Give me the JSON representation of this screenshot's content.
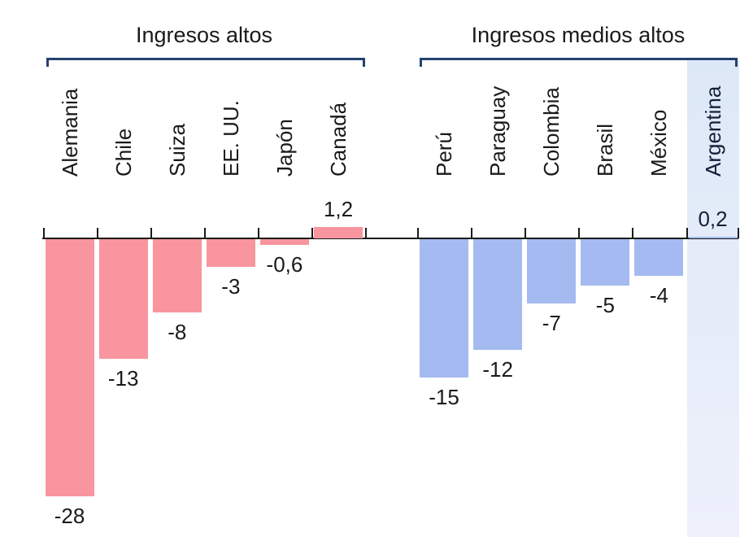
{
  "chart_data": {
    "type": "bar",
    "orientation": "vertical-columns",
    "title": "",
    "xlabel": "",
    "ylabel": "",
    "ylim": [
      -30,
      3
    ],
    "grid": false,
    "legend": "none",
    "value_format": "decimal-comma",
    "axis_color": "#1a1a1a",
    "bracket_color": "#24426e",
    "text_color": "#1a1a1a",
    "groups": [
      {
        "label": "Ingresos altos",
        "bar_color": "#f9959f",
        "bars": [
          {
            "country": "Alemania",
            "value": -28,
            "display": "-28"
          },
          {
            "country": "Chile",
            "value": -13,
            "display": "-13"
          },
          {
            "country": "Suiza",
            "value": -8,
            "display": "-8"
          },
          {
            "country": "EE. UU.",
            "value": -3,
            "display": "-3"
          },
          {
            "country": "Japón",
            "value": -0.6,
            "display": "-0,6"
          },
          {
            "country": "Canadá",
            "value": 1.2,
            "display": "1,2"
          }
        ]
      },
      {
        "label": "Ingresos medios altos",
        "bar_color": "#a4baf0",
        "bars": [
          {
            "country": "Perú",
            "value": -15,
            "display": "-15"
          },
          {
            "country": "Paraguay",
            "value": -12,
            "display": "-12"
          },
          {
            "country": "Colombia",
            "value": -7,
            "display": "-7"
          },
          {
            "country": "Brasil",
            "value": -5,
            "display": "-5"
          },
          {
            "country": "México",
            "value": -4,
            "display": "-4"
          },
          {
            "country": "Argentina",
            "value": 0.2,
            "display": "0,2",
            "highlighted": true
          }
        ]
      }
    ],
    "highlight": {
      "country": "Argentina",
      "column_background_top": "#dde8f7",
      "column_background_bottom": "#eef1fc",
      "text_color": "#14203a"
    }
  }
}
